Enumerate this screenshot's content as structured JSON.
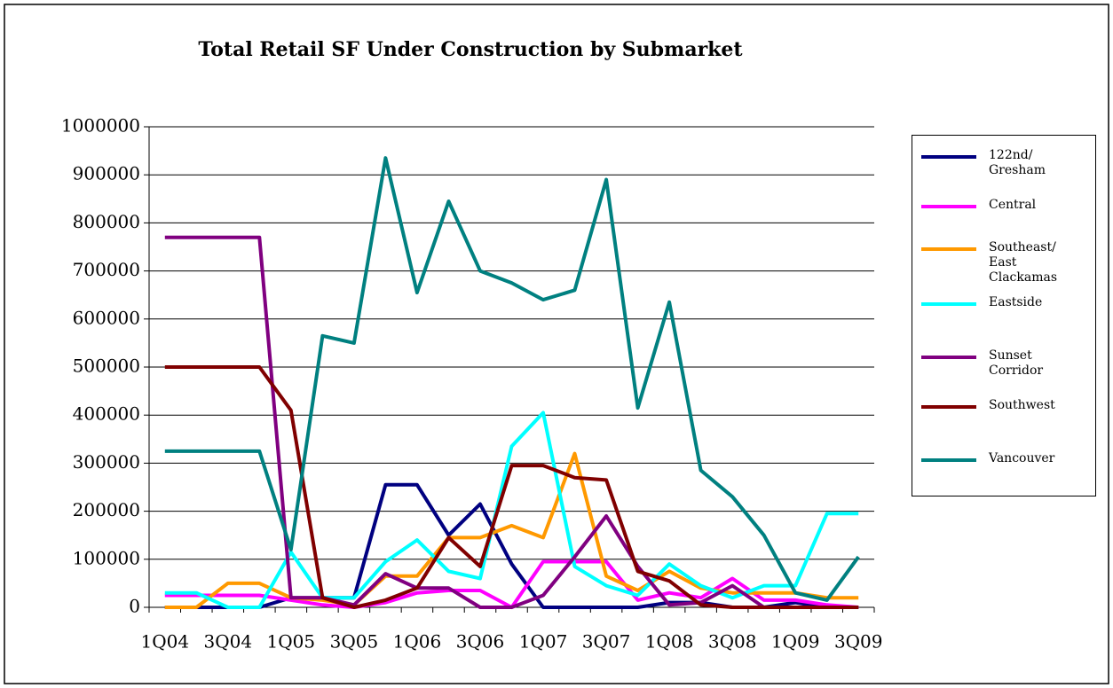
{
  "chart_data": {
    "type": "line",
    "title": "Total Retail SF Under Construction by Submarket",
    "categories": [
      "1Q04",
      null,
      "3Q04",
      null,
      "1Q05",
      null,
      "3Q05",
      null,
      "1Q06",
      null,
      "3Q06",
      null,
      "1Q07",
      null,
      "3Q07",
      null,
      "1Q08",
      null,
      "3Q08",
      null,
      "1Q09",
      null,
      "3Q09"
    ],
    "ylim": [
      0,
      1000000
    ],
    "yticks": [
      0,
      100000,
      200000,
      300000,
      400000,
      500000,
      600000,
      700000,
      800000,
      900000,
      1000000
    ],
    "grid": true,
    "legend": "right",
    "series": [
      {
        "name": "122nd/ Gresham",
        "color": "#000080",
        "values": [
          0,
          0,
          0,
          0,
          20000,
          20000,
          20000,
          255000,
          255000,
          150000,
          215000,
          90000,
          0,
          0,
          0,
          0,
          10000,
          10000,
          0,
          0,
          10000,
          0,
          0
        ]
      },
      {
        "name": "Central",
        "color": "#ff00ff",
        "values": [
          25000,
          25000,
          25000,
          25000,
          15000,
          5000,
          0,
          10000,
          30000,
          35000,
          35000,
          0,
          95000,
          95000,
          95000,
          15000,
          30000,
          20000,
          60000,
          15000,
          15000,
          5000,
          0
        ]
      },
      {
        "name": "Southeast/ East Clackamas",
        "color": "#ff9900",
        "values": [
          0,
          0,
          50000,
          50000,
          20000,
          15000,
          5000,
          65000,
          65000,
          145000,
          145000,
          170000,
          145000,
          320000,
          65000,
          35000,
          75000,
          40000,
          30000,
          30000,
          30000,
          20000,
          20000
        ]
      },
      {
        "name": "Eastside",
        "color": "#00ffff",
        "values": [
          30000,
          30000,
          0,
          0,
          115000,
          20000,
          20000,
          95000,
          140000,
          75000,
          60000,
          335000,
          405000,
          85000,
          45000,
          25000,
          90000,
          45000,
          20000,
          45000,
          45000,
          195000,
          195000
        ]
      },
      {
        "name": "Sunset Corridor",
        "color": "#800080",
        "values": [
          770000,
          770000,
          770000,
          770000,
          20000,
          20000,
          5000,
          70000,
          40000,
          40000,
          0,
          0,
          25000,
          105000,
          190000,
          85000,
          5000,
          10000,
          45000,
          0,
          0,
          0,
          0
        ]
      },
      {
        "name": "Southwest",
        "color": "#800000",
        "values": [
          500000,
          500000,
          500000,
          500000,
          410000,
          20000,
          0,
          15000,
          40000,
          145000,
          85000,
          295000,
          295000,
          270000,
          265000,
          75000,
          55000,
          5000,
          0,
          0,
          0,
          0,
          0
        ]
      },
      {
        "name": "Vancouver",
        "color": "#008080",
        "values": [
          325000,
          325000,
          325000,
          325000,
          120000,
          565000,
          550000,
          935000,
          655000,
          845000,
          700000,
          675000,
          640000,
          660000,
          890000,
          415000,
          635000,
          285000,
          230000,
          150000,
          30000,
          15000,
          105000
        ]
      }
    ]
  }
}
